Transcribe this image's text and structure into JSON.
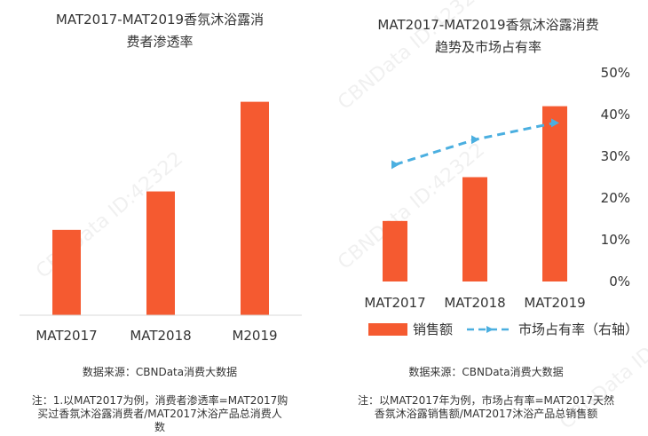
{
  "watermark": "CBNData ID:42322",
  "left_chart": {
    "title_lines": [
      "MAT2017-MAT2019香氛沐浴露消",
      "费者渗透率"
    ],
    "source": "数据来源：CBNData消费大数据",
    "note_lines": [
      "注：1.以MAT2017为例，消费者渗透率=MAT2017购",
      "买过香氛沐浴露消费者/MAT2017沐浴产品总消费人",
      "数"
    ]
  },
  "right_chart": {
    "title_lines": [
      "MAT2017-MAT2019香氛沐浴露消费",
      "趋势及市场占有率"
    ],
    "legend": {
      "bar": "销售额",
      "line": "市场占有率（右轴）"
    },
    "source": "数据来源：CBNData消费大数据",
    "note_lines": [
      "注：以MAT2017年为例，市场占有率=MAT2017天然",
      "香氛沐浴露销售额/MAT2017沐浴产品总销售额"
    ]
  },
  "colors": {
    "bar": "#f55a30",
    "line": "#4bafe0",
    "axis": "#d9d9d9"
  },
  "chart_data": [
    {
      "type": "bar",
      "title": "MAT2017-MAT2019香氛沐浴露消费者渗透率",
      "categories": [
        "MAT2017",
        "MAT2018",
        "M2019"
      ],
      "series": [
        {
          "values": [
            1.0,
            1.45,
            2.5
          ]
        }
      ],
      "ylim": [
        0,
        2.6
      ],
      "y_axis_visible": false,
      "grid": false
    },
    {
      "type": "bar",
      "title": "MAT2017-MAT2019香氛沐浴露消费趋势及市场占有率",
      "categories": [
        "MAT2017",
        "MAT2018",
        "MAT2019"
      ],
      "series": [
        {
          "name": "销售额",
          "type": "bar",
          "axis": "left",
          "values": [
            1.45,
            2.5,
            4.2
          ]
        },
        {
          "name": "市场占有率（右轴）",
          "type": "line",
          "axis": "right",
          "style": "dashed",
          "values": [
            0.28,
            0.34,
            0.38
          ]
        }
      ],
      "y_left": {
        "range": [
          0,
          5.0
        ],
        "visible": false
      },
      "y_right": {
        "range": [
          0,
          0.5
        ],
        "ticks": [
          "0%",
          "10%",
          "20%",
          "30%",
          "40%",
          "50%"
        ]
      },
      "grid": false
    }
  ]
}
